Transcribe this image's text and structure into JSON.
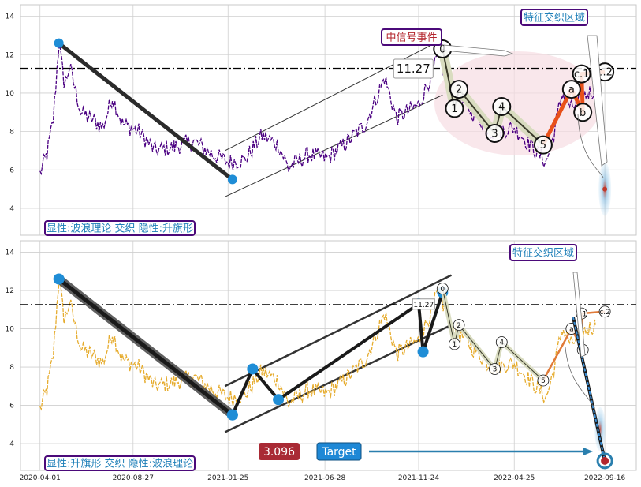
{
  "colors": {
    "price_top": "#4b0082",
    "price_bottom": "#e6ac2e",
    "trend_line": "#2b2b2b",
    "channel": "#333333",
    "node": "#1f8dd6",
    "orange_wave": "#e8501a",
    "orange_wave_bottom": "#e07b39",
    "highlight_ellipse": "#f6dde3",
    "box_border": "#4b0a7a",
    "box_text_blue": "#1e7fb8",
    "box_text_red": "#b3262d",
    "value_badge": "#a92a35",
    "target_badge": "#1e88d6",
    "target_arrow": "#2a7fae"
  },
  "chart_data": [
    {
      "type": "line",
      "title": "",
      "y_ticks": [
        4,
        6,
        8,
        10,
        12,
        14
      ],
      "ylim": [
        2.6,
        14.6
      ],
      "x_range": [
        "2020-03-01",
        "2022-11-05"
      ],
      "grid": true,
      "hline": {
        "value": 11.27,
        "style": "dash-dot"
      },
      "hline_label": "11.27",
      "annotations": {
        "top_right_box": "特征交织区域",
        "signal_box": "中信号事件",
        "bottom_left_box": "显性:波浪理论 交织 隐性:升旗形"
      },
      "series": [
        {
          "shape": "price",
          "anchors": [
            [
              "2020-04-01",
              5.8
            ],
            [
              "2020-04-12",
              6.8
            ],
            [
              "2020-04-22",
              8.6
            ],
            [
              "2020-05-01",
              12.6
            ],
            [
              "2020-05-10",
              10.4
            ],
            [
              "2020-05-18",
              11.4
            ],
            [
              "2020-06-05",
              9.0
            ],
            [
              "2020-06-20",
              8.7
            ],
            [
              "2020-07-10",
              8.2
            ],
            [
              "2020-07-25",
              9.8
            ],
            [
              "2020-08-10",
              8.4
            ],
            [
              "2020-09-05",
              8.0
            ],
            [
              "2020-10-01",
              7.0
            ],
            [
              "2020-11-01",
              7.2
            ],
            [
              "2020-12-01",
              7.5
            ],
            [
              "2021-01-01",
              6.8
            ],
            [
              "2021-01-25",
              6.4
            ],
            [
              "2021-02-20",
              6.5
            ],
            [
              "2021-03-20",
              7.8
            ],
            [
              "2021-04-15",
              7.3
            ],
            [
              "2021-05-01",
              6.1
            ],
            [
              "2021-06-01",
              6.8
            ],
            [
              "2021-07-01",
              6.6
            ],
            [
              "2021-08-01",
              7.4
            ],
            [
              "2021-09-01",
              8.4
            ],
            [
              "2021-10-01",
              10.8
            ],
            [
              "2021-10-20",
              8.7
            ],
            [
              "2021-11-24",
              9.4
            ],
            [
              "2021-12-10",
              10.6
            ],
            [
              "2021-12-25",
              11.9
            ],
            [
              "2022-01-15",
              10.2
            ],
            [
              "2022-02-15",
              9.1
            ],
            [
              "2022-03-20",
              8.0
            ],
            [
              "2022-04-25",
              8.2
            ],
            [
              "2022-05-20",
              7.3
            ],
            [
              "2022-06-15",
              6.4
            ],
            [
              "2022-06-25",
              7.6
            ],
            [
              "2022-07-10",
              10.0
            ],
            [
              "2022-07-25",
              9.2
            ],
            [
              "2022-08-15",
              9.9
            ],
            [
              "2022-09-01",
              10.2
            ]
          ]
        },
        {
          "shape": "trend",
          "points": [
            [
              "2020-05-01",
              12.6
            ],
            [
              "2021-02-01",
              5.5
            ]
          ]
        },
        {
          "shape": "channel",
          "lines": [
            [
              [
                "2021-01-20",
                4.6
              ],
              [
                "2022-01-01",
                9.9
              ]
            ],
            [
              [
                "2021-01-20",
                7.0
              ],
              [
                "2022-01-01",
                12.8
              ]
            ]
          ]
        },
        {
          "shape": "wave",
          "labels": [
            "0",
            "1",
            "2",
            "3",
            "4",
            "5"
          ],
          "points": [
            [
              "2022-01-01",
              12.3
            ],
            [
              "2022-01-20",
              9.2
            ],
            [
              "2022-01-27",
              10.2
            ],
            [
              "2022-03-25",
              7.9
            ],
            [
              "2022-04-05",
              9.3
            ],
            [
              "2022-06-10",
              7.3
            ]
          ]
        },
        {
          "shape": "abc",
          "labels": [
            "a",
            "b",
            "c.1",
            "c.2"
          ],
          "points": [
            [
              "2022-06-10",
              7.3
            ],
            [
              "2022-07-25",
              10.2
            ],
            [
              "2022-08-12",
              9.0
            ],
            [
              "2022-08-10",
              11.0
            ],
            [
              "2022-09-16",
              11.1
            ]
          ]
        },
        {
          "shape": "projection",
          "points": [
            [
              "2022-09-16",
              5.0
            ]
          ]
        }
      ]
    },
    {
      "type": "line",
      "title": "",
      "y_ticks": [
        4,
        6,
        8,
        10,
        12,
        14
      ],
      "x_ticks": [
        "2020-04-01",
        "2020-08-27",
        "2021-01-25",
        "2021-06-28",
        "2021-11-24",
        "2022-04-25",
        "2022-09-16"
      ],
      "ylim": [
        2.6,
        14.6
      ],
      "x_range": [
        "2020-03-01",
        "2022-11-05"
      ],
      "grid": true,
      "hline": {
        "value": 11.27,
        "style": "dash-dot"
      },
      "hline_label": "11.27",
      "annotations": {
        "top_right_box": "特征交织区域",
        "bottom_left_box": "显性:升旗形 交织 隐性:波浪理论",
        "value_badge": "3.096",
        "target_badge": "Target"
      },
      "series": [
        {
          "shape": "price",
          "same_as_top": true
        },
        {
          "shape": "trend",
          "points": [
            [
              "2020-05-01",
              12.6
            ],
            [
              "2021-02-01",
              5.5
            ]
          ]
        },
        {
          "shape": "flag_zigzag",
          "points": [
            [
              "2021-02-01",
              5.5
            ],
            [
              "2021-03-05",
              7.9
            ],
            [
              "2021-04-15",
              6.3
            ],
            [
              "2021-11-24",
              11.3
            ],
            [
              "2021-12-01",
              8.8
            ],
            [
              "2022-01-01",
              11.9
            ]
          ]
        },
        {
          "shape": "channel",
          "lines": [
            [
              [
                "2021-01-20",
                4.6
              ],
              [
                "2022-01-15",
                10.2
              ]
            ],
            [
              [
                "2021-01-20",
                7.0
              ],
              [
                "2022-01-15",
                12.8
              ]
            ]
          ]
        },
        {
          "shape": "wave",
          "labels": [
            "0",
            "1",
            "2",
            "3",
            "4",
            "5"
          ],
          "points": [
            [
              "2022-01-01",
              12.1
            ],
            [
              "2022-01-20",
              9.2
            ],
            [
              "2022-01-27",
              10.2
            ],
            [
              "2022-03-25",
              7.9
            ],
            [
              "2022-04-05",
              9.3
            ],
            [
              "2022-06-10",
              7.3
            ]
          ]
        },
        {
          "shape": "abc",
          "labels": [
            "a",
            "b",
            "c.1",
            "c.2"
          ],
          "points": [
            [
              "2022-06-10",
              7.3
            ],
            [
              "2022-07-25",
              10.0
            ],
            [
              "2022-08-12",
              8.9
            ],
            [
              "2022-08-10",
              10.8
            ],
            [
              "2022-09-16",
              10.9
            ]
          ]
        },
        {
          "shape": "target",
          "points": [
            [
              "2022-09-16",
              3.1
            ]
          ],
          "value": 3.096
        }
      ]
    }
  ]
}
